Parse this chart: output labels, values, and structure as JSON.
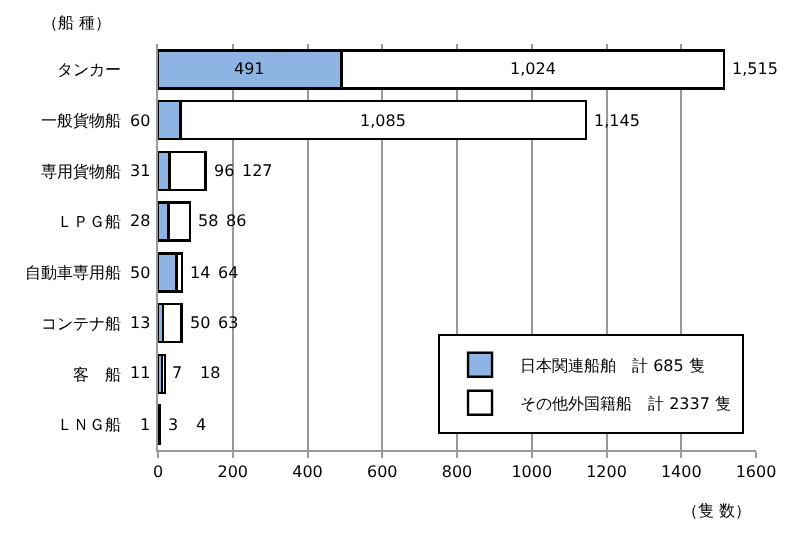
{
  "chart_data": {
    "type": "bar",
    "orientation": "horizontal",
    "stacked": true,
    "ylabel": "（船 種）",
    "xlabel": "（隻 数）",
    "categories": [
      "タンカー",
      "一般貨物船",
      "専用貨物船",
      "ＬＰＧ船",
      "自動車専用船",
      "コンテナ船",
      "客　船",
      "ＬＮＧ船"
    ],
    "series": [
      {
        "name": "日本関連船舶　計 685 隻",
        "color": "#8eb4e3",
        "values": [
          491,
          60,
          31,
          28,
          50,
          13,
          11,
          1
        ],
        "value_labels": [
          "491",
          "60",
          "31",
          "28",
          "50",
          "13",
          "11",
          "1"
        ]
      },
      {
        "name": "その他外国籍船　計 2337 隻",
        "color": "#ffffff",
        "values": [
          1024,
          1085,
          96,
          58,
          14,
          50,
          7,
          3
        ],
        "value_labels": [
          "1,024",
          "1,085",
          "96",
          "58",
          "14",
          "50",
          "7",
          "3"
        ]
      }
    ],
    "totals": [
      "1,515",
      "1,145",
      "127",
      "86",
      "64",
      "63",
      "18",
      "4"
    ],
    "xlim": [
      0,
      1600
    ],
    "xticks": [
      0,
      200,
      400,
      600,
      800,
      1000,
      1200,
      1400,
      1600
    ],
    "grid": "x",
    "legend": "bottom right"
  }
}
